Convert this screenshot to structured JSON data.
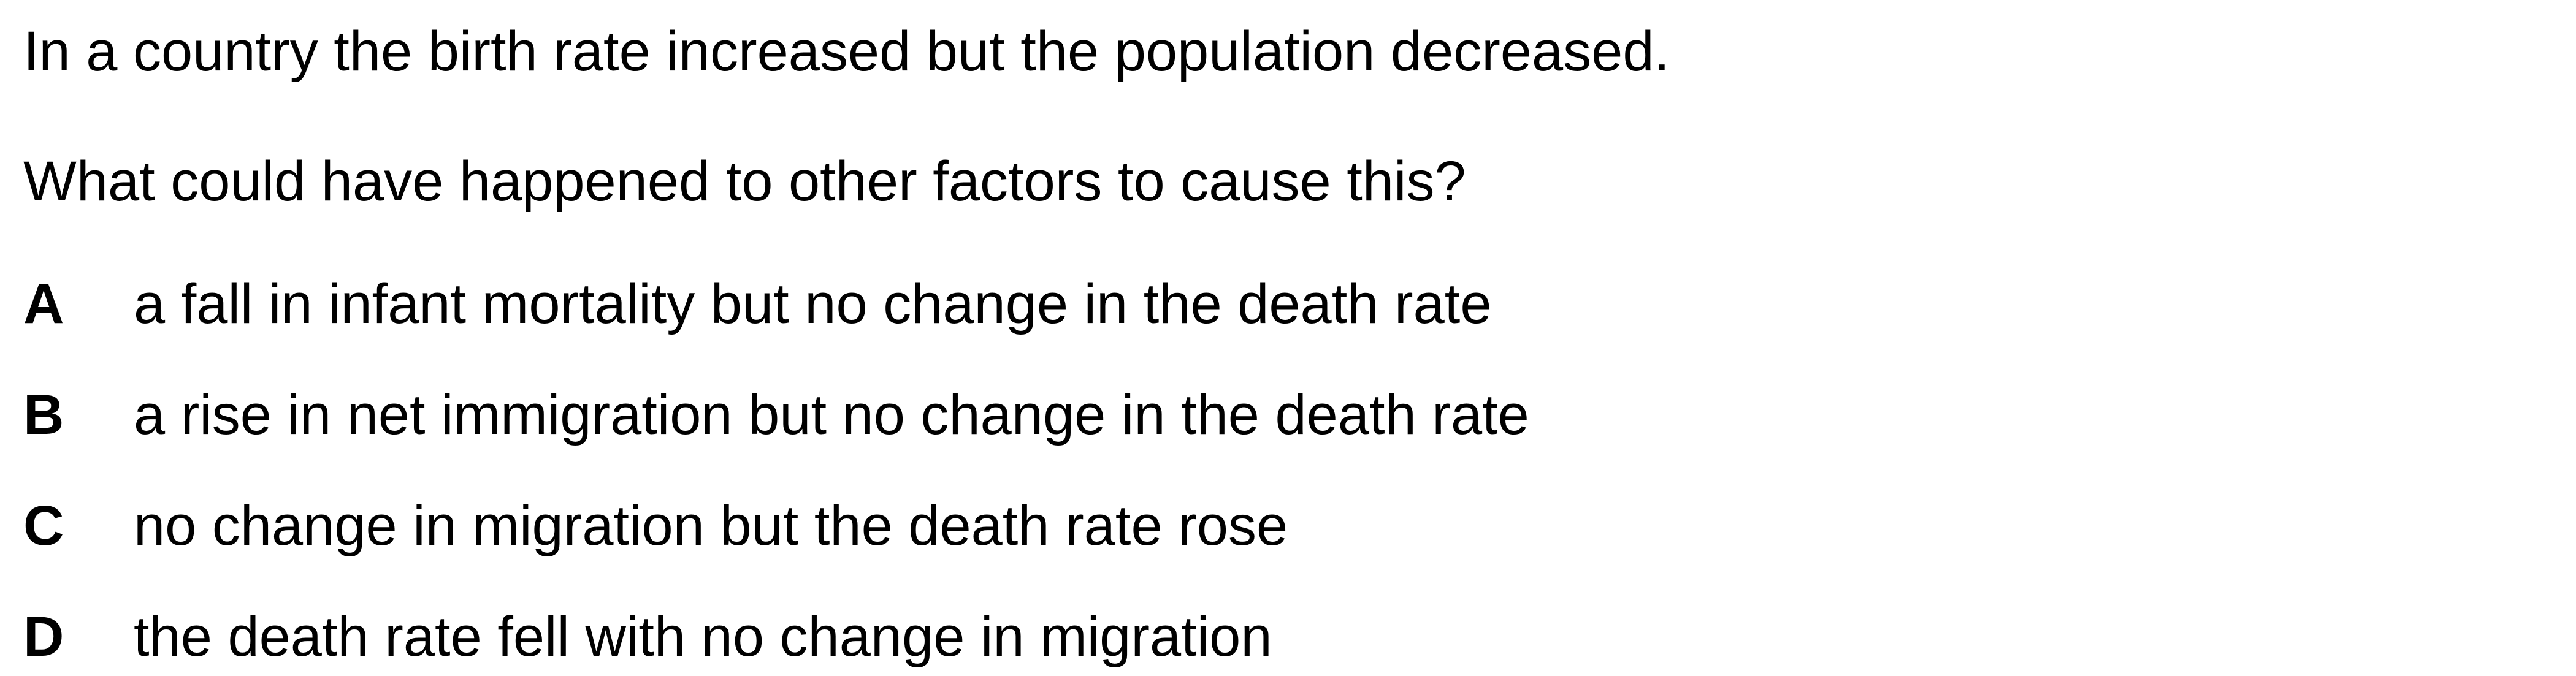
{
  "stem": "In a country the birth rate increased but the population decreased.",
  "question": "What could have happened to other factors to cause this?",
  "options": [
    {
      "letter": "A",
      "text": "a fall in infant mortality but no change in the death rate"
    },
    {
      "letter": "B",
      "text": "a rise in net immigration but no change in the death rate"
    },
    {
      "letter": "C",
      "text": "no change in migration but the death rate rose"
    },
    {
      "letter": "D",
      "text": "the death rate fell with no change in migration"
    }
  ]
}
